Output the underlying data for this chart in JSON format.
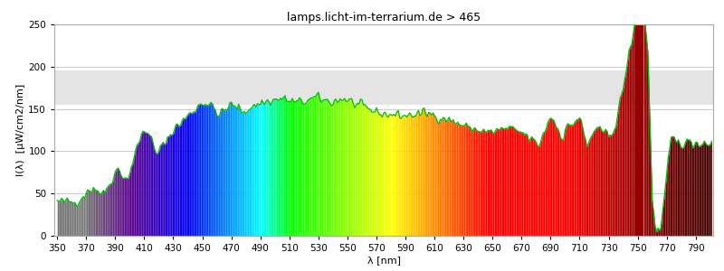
{
  "title": "lamps.licht-im-terrarium.de > 465",
  "xlabel": "λ [nm]",
  "ylabel": "I(λ)  [µW/cm2/nm]",
  "xlim": [
    348,
    802
  ],
  "ylim": [
    0,
    250
  ],
  "xticks": [
    350,
    370,
    390,
    410,
    430,
    450,
    470,
    490,
    510,
    530,
    550,
    570,
    590,
    610,
    630,
    650,
    670,
    690,
    710,
    730,
    750,
    770,
    790
  ],
  "yticks": [
    0,
    50,
    100,
    150,
    200,
    250
  ],
  "plot_bg_color": "#ffffff",
  "grid_color": "#cccccc",
  "gray_band_low": 155,
  "gray_band_high": 195,
  "gray_band_color": "#e4e4e4",
  "line_color": "#00bb00",
  "title_fontsize": 9,
  "axis_label_fontsize": 8,
  "tick_fontsize": 7.5
}
